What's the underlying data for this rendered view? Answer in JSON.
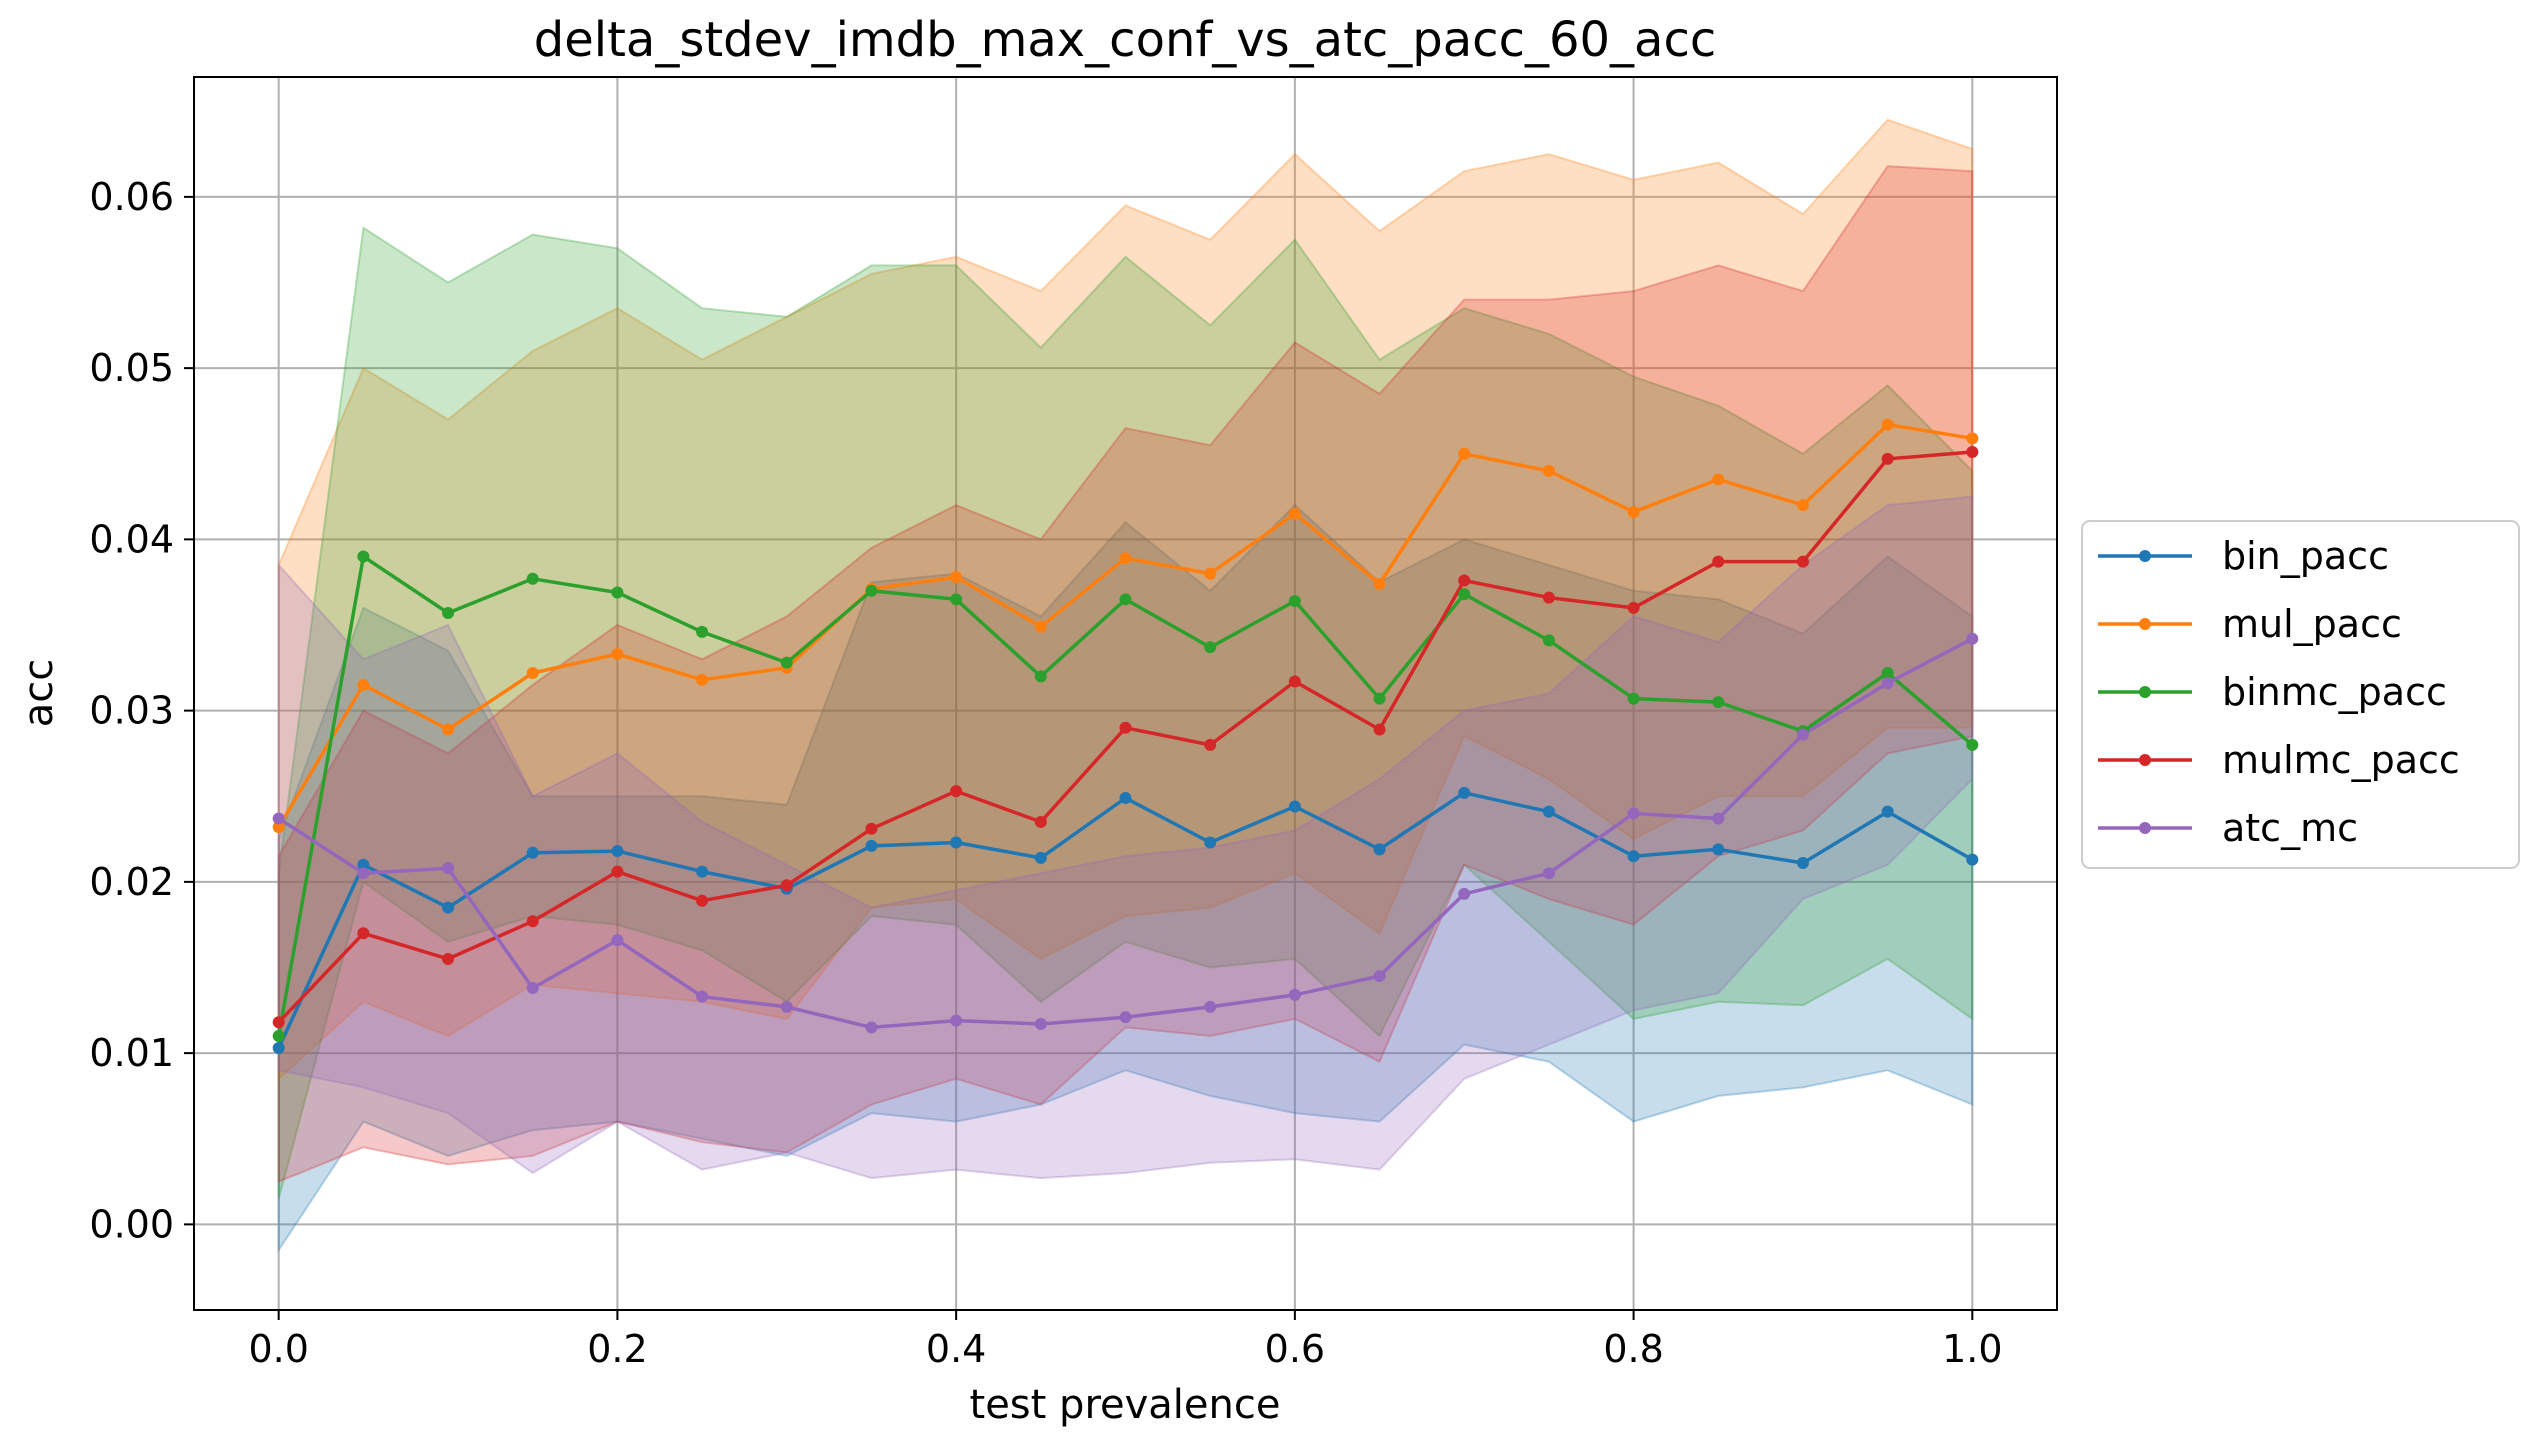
{
  "chart_data": {
    "type": "line",
    "title": "delta_stdev_imdb_max_conf_vs_atc_pacc_60_acc",
    "xlabel": "test prevalence",
    "ylabel": "acc",
    "xlim": [
      -0.05,
      1.05
    ],
    "ylim": [
      -0.005,
      0.067
    ],
    "xticks": [
      0.0,
      0.2,
      0.4,
      0.6,
      0.8,
      1.0
    ],
    "xtick_labels": [
      "0.0",
      "0.2",
      "0.4",
      "0.6",
      "0.8",
      "1.0"
    ],
    "yticks": [
      0.0,
      0.01,
      0.02,
      0.03,
      0.04,
      0.05,
      0.06
    ],
    "ytick_labels": [
      "0.00",
      "0.01",
      "0.02",
      "0.03",
      "0.04",
      "0.05",
      "0.06"
    ],
    "grid": true,
    "legend_position": "right-outside",
    "x": [
      0.0,
      0.05,
      0.1,
      0.15,
      0.2,
      0.25,
      0.3,
      0.35,
      0.4,
      0.45,
      0.5,
      0.55,
      0.6,
      0.65,
      0.7,
      0.75,
      0.8,
      0.85,
      0.9,
      0.95,
      1.0
    ],
    "series": [
      {
        "name": "bin_pacc",
        "color": "#1f77b4",
        "values": [
          0.0103,
          0.021,
          0.0185,
          0.0217,
          0.0218,
          0.0206,
          0.0196,
          0.0221,
          0.0223,
          0.0214,
          0.0249,
          0.0223,
          0.0244,
          0.0219,
          0.0252,
          0.0241,
          0.0215,
          0.0219,
          0.0211,
          0.0241,
          0.0213
        ],
        "upper": [
          0.0225,
          0.036,
          0.0335,
          0.025,
          0.025,
          0.025,
          0.0245,
          0.0375,
          0.038,
          0.0355,
          0.041,
          0.037,
          0.042,
          0.0375,
          0.04,
          0.0385,
          0.037,
          0.0365,
          0.0345,
          0.039,
          0.0355
        ],
        "lower": [
          -0.0015,
          0.006,
          0.004,
          0.0055,
          0.006,
          0.005,
          0.004,
          0.0065,
          0.006,
          0.007,
          0.009,
          0.0075,
          0.0065,
          0.006,
          0.0105,
          0.0095,
          0.006,
          0.0075,
          0.008,
          0.009,
          0.007
        ]
      },
      {
        "name": "mul_pacc",
        "color": "#ff7f0e",
        "values": [
          0.0232,
          0.0315,
          0.0289,
          0.0322,
          0.0333,
          0.0318,
          0.0325,
          0.0371,
          0.0378,
          0.0349,
          0.0389,
          0.038,
          0.0415,
          0.0374,
          0.045,
          0.044,
          0.0416,
          0.0435,
          0.042,
          0.0467,
          0.0459
        ],
        "upper": [
          0.0385,
          0.05,
          0.047,
          0.051,
          0.0535,
          0.0505,
          0.053,
          0.0555,
          0.0565,
          0.0545,
          0.0595,
          0.0575,
          0.0625,
          0.058,
          0.0615,
          0.0625,
          0.061,
          0.062,
          0.059,
          0.0645,
          0.0628
        ],
        "lower": [
          0.0085,
          0.013,
          0.011,
          0.014,
          0.0135,
          0.013,
          0.012,
          0.0185,
          0.019,
          0.0155,
          0.018,
          0.0185,
          0.0205,
          0.017,
          0.0285,
          0.026,
          0.0225,
          0.025,
          0.025,
          0.029,
          0.029
        ]
      },
      {
        "name": "binmc_pacc",
        "color": "#2ca02c",
        "values": [
          0.011,
          0.039,
          0.0357,
          0.0377,
          0.0369,
          0.0346,
          0.0328,
          0.037,
          0.0365,
          0.032,
          0.0365,
          0.0337,
          0.0364,
          0.0307,
          0.0368,
          0.0341,
          0.0307,
          0.0305,
          0.0288,
          0.0322,
          0.028
        ],
        "upper": [
          0.0205,
          0.0582,
          0.055,
          0.0578,
          0.057,
          0.0535,
          0.053,
          0.056,
          0.056,
          0.0512,
          0.0565,
          0.0525,
          0.0575,
          0.0505,
          0.0535,
          0.052,
          0.0495,
          0.0478,
          0.045,
          0.049,
          0.044
        ],
        "lower": [
          0.0015,
          0.02,
          0.0165,
          0.018,
          0.0175,
          0.016,
          0.013,
          0.018,
          0.0175,
          0.013,
          0.0165,
          0.015,
          0.0155,
          0.011,
          0.021,
          0.0165,
          0.012,
          0.013,
          0.0128,
          0.0155,
          0.012
        ]
      },
      {
        "name": "mulmc_pacc",
        "color": "#d62728",
        "values": [
          0.0118,
          0.017,
          0.0155,
          0.0177,
          0.0206,
          0.0189,
          0.0198,
          0.0231,
          0.0253,
          0.0235,
          0.029,
          0.028,
          0.0317,
          0.0289,
          0.0376,
          0.0366,
          0.036,
          0.0387,
          0.0387,
          0.0447,
          0.0451
        ],
        "upper": [
          0.0215,
          0.03,
          0.0275,
          0.0315,
          0.035,
          0.033,
          0.0355,
          0.0395,
          0.042,
          0.04,
          0.0465,
          0.0455,
          0.0515,
          0.0485,
          0.054,
          0.054,
          0.0545,
          0.056,
          0.0545,
          0.0618,
          0.0615
        ],
        "lower": [
          0.0025,
          0.0045,
          0.0035,
          0.004,
          0.006,
          0.0048,
          0.0042,
          0.007,
          0.0085,
          0.007,
          0.0115,
          0.011,
          0.012,
          0.0095,
          0.021,
          0.019,
          0.0175,
          0.0215,
          0.023,
          0.0275,
          0.0285
        ]
      },
      {
        "name": "atc_mc",
        "color": "#9467bd",
        "values": [
          0.0237,
          0.0205,
          0.0208,
          0.0138,
          0.0166,
          0.0133,
          0.0127,
          0.0115,
          0.0119,
          0.0117,
          0.0121,
          0.0127,
          0.0134,
          0.0145,
          0.0193,
          0.0205,
          0.024,
          0.0237,
          0.0286,
          0.0316,
          0.0342
        ],
        "upper": [
          0.0385,
          0.033,
          0.035,
          0.025,
          0.0275,
          0.0235,
          0.021,
          0.0185,
          0.0195,
          0.0205,
          0.0215,
          0.022,
          0.023,
          0.026,
          0.03,
          0.031,
          0.0355,
          0.034,
          0.0385,
          0.042,
          0.0425
        ],
        "lower": [
          0.009,
          0.008,
          0.0065,
          0.003,
          0.006,
          0.0032,
          0.0042,
          0.0027,
          0.0032,
          0.0027,
          0.003,
          0.0036,
          0.0038,
          0.0032,
          0.0085,
          0.0105,
          0.0125,
          0.0135,
          0.019,
          0.021,
          0.026
        ]
      }
    ]
  }
}
